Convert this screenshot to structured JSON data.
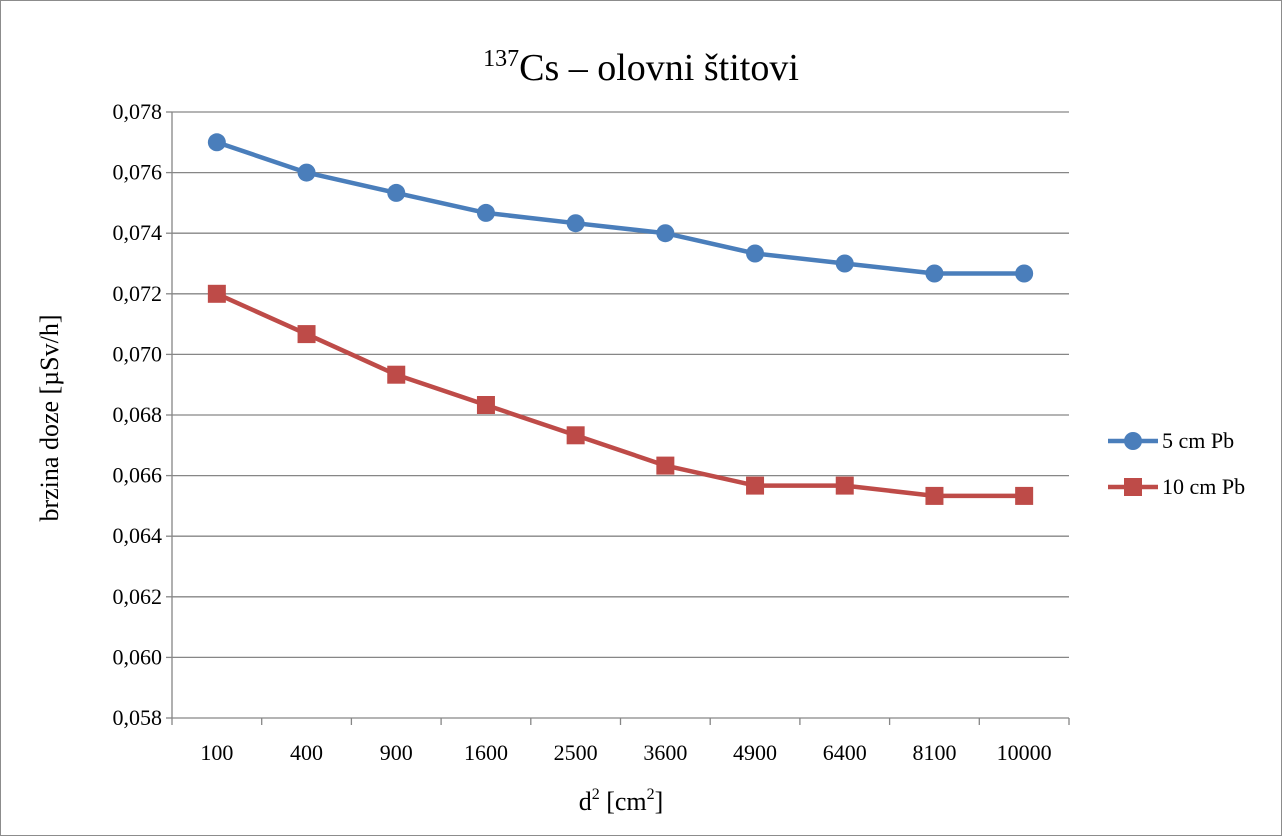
{
  "chart_data": {
    "type": "line",
    "title_sup": "137",
    "title_main": "Cs – olovni štitovi",
    "ylabel": "brzina doze [µSv/h]",
    "xlabel_main": "d",
    "xlabel_sup": "2",
    "xlabel_unit_open": " [cm",
    "xlabel_unit_sup": "2",
    "xlabel_unit_close": "]",
    "categories": [
      "100",
      "400",
      "900",
      "1600",
      "2500",
      "3600",
      "4900",
      "6400",
      "8100",
      "10000"
    ],
    "ylim": [
      0.058,
      0.078
    ],
    "ytick_labels": [
      "0,058",
      "0,060",
      "0,062",
      "0,064",
      "0,066",
      "0,068",
      "0,070",
      "0,072",
      "0,074",
      "0,076",
      "0,078"
    ],
    "grid": "horizontal",
    "legend_position": "right",
    "series": [
      {
        "name": "5 cm Pb",
        "color": "#4a7ebb",
        "marker": "circle",
        "values": [
          0.077,
          0.076,
          0.07533,
          0.07467,
          0.07433,
          0.074,
          0.07333,
          0.073,
          0.07267,
          0.07267
        ]
      },
      {
        "name": "10 cm Pb",
        "color": "#be4b48",
        "marker": "square",
        "values": [
          0.072,
          0.07067,
          0.06933,
          0.06833,
          0.06733,
          0.06633,
          0.06567,
          0.06567,
          0.06533,
          0.06533
        ]
      }
    ]
  }
}
